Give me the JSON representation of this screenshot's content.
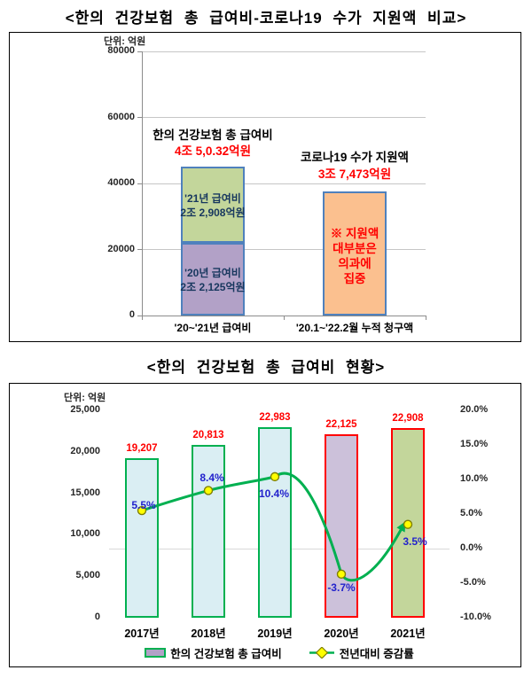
{
  "colors": {
    "value_red": "#ff0000",
    "pct_blue": "#2222cc",
    "line_green": "#00b050",
    "marker_yellow": "#ffff00",
    "marker_stroke": "#7f7f00",
    "bar_border_blue": "#4f81bd",
    "green_fill": "#c3d69b",
    "purple_fill": "#b2a1c7",
    "purple_fill_light": "#ccc1da",
    "orange_fill": "#fbc08f",
    "cyan_fill": "#daeef3",
    "green_border": "#00b050",
    "red_border": "#ff0000",
    "navy_text": "#17375e"
  },
  "chart_data": [
    {
      "type": "bar",
      "title": "<한의 건강보험 총 급여비-코로나19 수가 지원액 비교>",
      "unit_label": "단위: 억원",
      "xlabel": "",
      "ylabel": "",
      "ylim": [
        0,
        80000
      ],
      "grid": "horizontal",
      "y_ticks": [
        80000,
        60000,
        40000,
        20000,
        0
      ],
      "y_tick_labels": [
        "80000",
        "60000",
        "40000",
        "20000",
        "0"
      ],
      "categories": [
        "'20~'21년 급여비",
        "'20.1~'22.2월 누적 청구액"
      ],
      "groups": [
        {
          "header": "한의 건강보험 총 급여비",
          "total_label": "4조 5,0.32억원",
          "stacked": true,
          "segments": [
            {
              "name": "20년 급여비",
              "value": 22125,
              "label_lines": [
                "'20년 급여비",
                "2조 2,125억원"
              ],
              "fill": "purple_fill",
              "label_color": "navy_text"
            },
            {
              "name": "21년 급여비",
              "value": 22908,
              "label_lines": [
                "'21년 급여비",
                "2조 2,908억원"
              ],
              "fill": "green_fill",
              "label_color": "navy_text"
            }
          ]
        },
        {
          "header": "코로나19 수가 지원액",
          "total_label": "3조 7,473억원",
          "stacked": false,
          "segments": [
            {
              "name": "코로나19 수가 지원액",
              "value": 37473,
              "label_lines": [
                "※ 지원액",
                "대부분은",
                "의과에",
                "집중"
              ],
              "fill": "orange_fill",
              "label_color": "value_red"
            }
          ]
        }
      ]
    },
    {
      "type": "bar",
      "title": "<한의 건강보험 총 급여비 현황>",
      "unit_label": "단위: 억원",
      "categories": [
        "2017년",
        "2018년",
        "2019년",
        "2020년",
        "2021년"
      ],
      "bar_series": {
        "name": "한의 건강보험 총 급여비",
        "values": [
          19207,
          20813,
          22983,
          22125,
          22908
        ],
        "labels": [
          "19,207",
          "20,813",
          "22,983",
          "22,125",
          "22,908"
        ],
        "fills": [
          "cyan_fill",
          "cyan_fill",
          "cyan_fill",
          "purple_fill_light",
          "green_fill"
        ],
        "borders": [
          "green_border",
          "green_border",
          "green_border",
          "red_border",
          "red_border"
        ]
      },
      "line_series": {
        "name": "전년대비 증감률",
        "values": [
          5.5,
          8.4,
          10.4,
          -3.7,
          3.5
        ],
        "labels": [
          "5.5%",
          "8.4%",
          "10.4%",
          "-3.7%",
          "3.5%"
        ]
      },
      "ylim_left": [
        0,
        25000
      ],
      "y_ticks_left": [
        25000,
        20000,
        15000,
        10000,
        5000,
        0
      ],
      "y_tick_left_labels": [
        "25,000",
        "20,000",
        "15,000",
        "10,000",
        "5,000",
        "0"
      ],
      "ylim_right": [
        -10,
        20
      ],
      "y_ticks_right": [
        20,
        15,
        10,
        5,
        0,
        -5,
        -10
      ],
      "y_tick_right_labels": [
        "20.0%",
        "15.0%",
        "10.0%",
        "5.0%",
        "0.0%",
        "-5.0%",
        "-10.0%"
      ],
      "grid": "zero-line-only",
      "legend_position": "bottom",
      "legend": [
        {
          "label": "한의 건강보험 총 급여비",
          "marker": "bar"
        },
        {
          "label": "전년대비 증감률",
          "marker": "line"
        }
      ]
    }
  ]
}
